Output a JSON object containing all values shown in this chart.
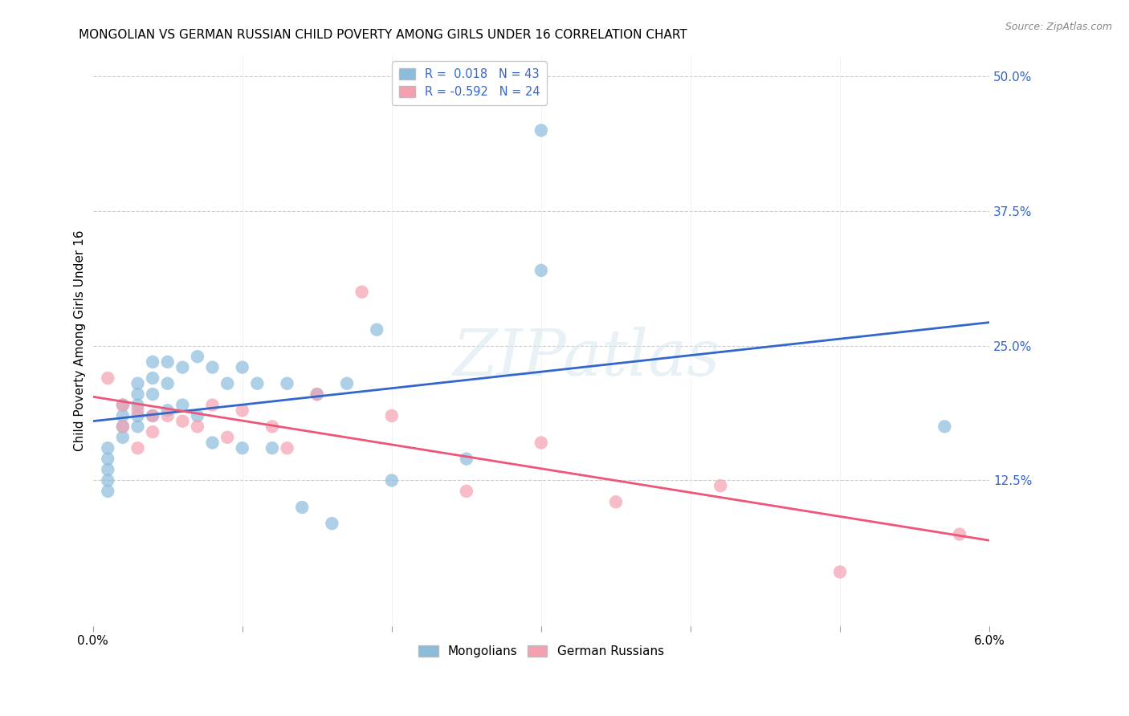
{
  "title": "MONGOLIAN VS GERMAN RUSSIAN CHILD POVERTY AMONG GIRLS UNDER 16 CORRELATION CHART",
  "source": "Source: ZipAtlas.com",
  "ylabel": "Child Poverty Among Girls Under 16",
  "xlim": [
    0.0,
    0.06
  ],
  "ylim": [
    -0.01,
    0.52
  ],
  "xtick_labels": [
    "0.0%",
    "",
    "",
    "",
    "",
    "",
    "6.0%"
  ],
  "xtick_values": [
    0.0,
    0.01,
    0.02,
    0.03,
    0.04,
    0.05,
    0.06
  ],
  "ytick_labels_right": [
    "12.5%",
    "25.0%",
    "37.5%",
    "50.0%"
  ],
  "ytick_values_right": [
    0.125,
    0.25,
    0.375,
    0.5
  ],
  "blue_color": "#8bbcdc",
  "pink_color": "#f4a0b0",
  "line_blue": "#3366cc",
  "line_pink": "#ee5577",
  "legend_blue_label": "R =  0.018   N = 43",
  "legend_pink_label": "R = -0.592   N = 24",
  "mongolians_x": [
    0.001,
    0.001,
    0.001,
    0.001,
    0.001,
    0.002,
    0.002,
    0.002,
    0.002,
    0.003,
    0.003,
    0.003,
    0.003,
    0.003,
    0.004,
    0.004,
    0.004,
    0.004,
    0.005,
    0.005,
    0.005,
    0.006,
    0.006,
    0.007,
    0.007,
    0.008,
    0.008,
    0.009,
    0.01,
    0.01,
    0.011,
    0.012,
    0.013,
    0.014,
    0.015,
    0.016,
    0.017,
    0.019,
    0.02,
    0.025,
    0.03,
    0.03,
    0.057
  ],
  "mongolians_y": [
    0.155,
    0.145,
    0.135,
    0.125,
    0.115,
    0.195,
    0.185,
    0.175,
    0.165,
    0.215,
    0.205,
    0.195,
    0.185,
    0.175,
    0.235,
    0.22,
    0.205,
    0.185,
    0.235,
    0.215,
    0.19,
    0.23,
    0.195,
    0.24,
    0.185,
    0.23,
    0.16,
    0.215,
    0.23,
    0.155,
    0.215,
    0.155,
    0.215,
    0.1,
    0.205,
    0.085,
    0.215,
    0.265,
    0.125,
    0.145,
    0.45,
    0.32,
    0.175
  ],
  "german_russians_x": [
    0.001,
    0.002,
    0.002,
    0.003,
    0.003,
    0.004,
    0.004,
    0.005,
    0.006,
    0.007,
    0.008,
    0.009,
    0.01,
    0.012,
    0.013,
    0.015,
    0.018,
    0.02,
    0.025,
    0.03,
    0.035,
    0.042,
    0.05,
    0.058
  ],
  "german_russians_y": [
    0.22,
    0.195,
    0.175,
    0.19,
    0.155,
    0.185,
    0.17,
    0.185,
    0.18,
    0.175,
    0.195,
    0.165,
    0.19,
    0.175,
    0.155,
    0.205,
    0.3,
    0.185,
    0.115,
    0.16,
    0.105,
    0.12,
    0.04,
    0.075
  ],
  "watermark_text": "ZIPatlas",
  "background_color": "#ffffff",
  "grid_color": "#cccccc"
}
